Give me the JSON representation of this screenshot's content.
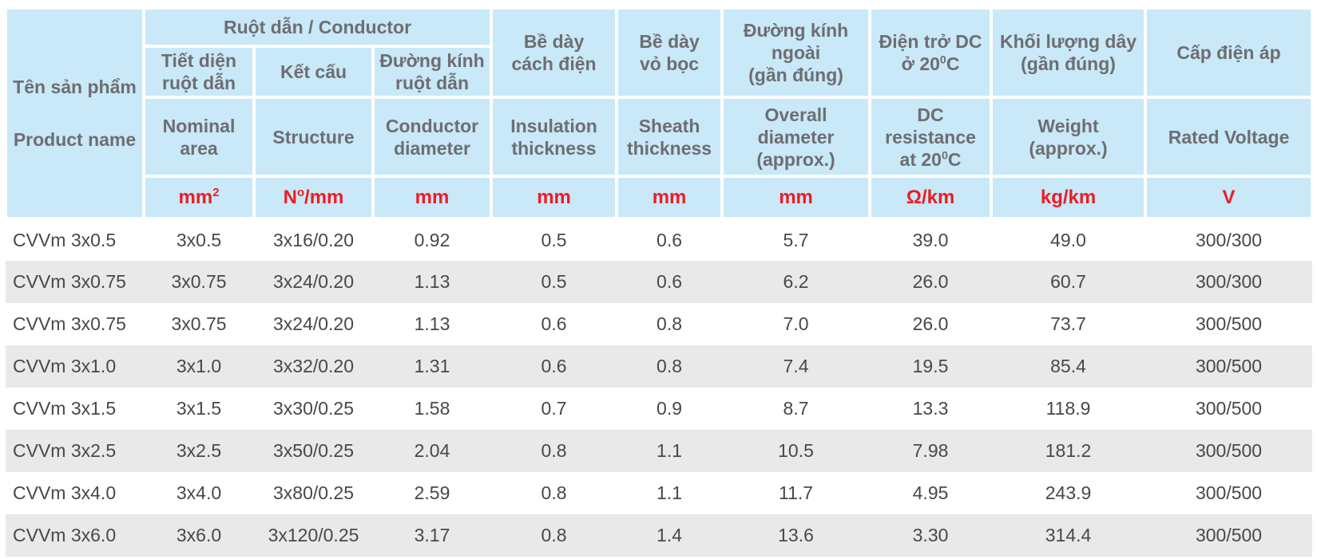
{
  "colors": {
    "header_bg": "#c9e8f8",
    "header_text": "#6d6e71",
    "unit_text": "#ed1c24",
    "data_text": "#48484a",
    "row_alt_bg": "#e9e9e9",
    "grid_line": "#ffffff"
  },
  "table": {
    "header": {
      "product_name_vi": "Tên sản phẩm",
      "product_name_en": "Product name",
      "conductor_group": "Ruột dẫn / Conductor",
      "vi": {
        "nominal_area": "Tiết diện\nruột dẫn",
        "structure": "Kết cấu",
        "conductor_diameter": "Đường kính\nruột dẫn",
        "insulation_thickness": "Bề dày\ncách điện",
        "sheath_thickness": "Bề dày\nvỏ bọc",
        "overall_diameter": "Đường kính\nngoài\n(gần đúng)",
        "dc_resistance": "Điện trở DC\nở 20^{0}C",
        "weight": "Khối lượng dây\n(gần đúng)",
        "rated_voltage": "Cấp điện áp"
      },
      "en": {
        "nominal_area": "Nominal\narea",
        "structure": "Structure",
        "conductor_diameter": "Conductor\ndiameter",
        "insulation_thickness": "Insulation\nthickness",
        "sheath_thickness": "Sheath\nthickness",
        "overall_diameter": "Overall\ndiameter\n(approx.)",
        "dc_resistance": "DC\nresistance\nat 20^{0}C",
        "weight": "Weight\n(approx.)",
        "rated_voltage": "Rated Voltage"
      },
      "units": [
        "mm^{2}",
        "N^{o}/mm",
        "mm",
        "mm",
        "mm",
        "mm",
        "Ω/km",
        "kg/km",
        "V"
      ]
    },
    "rows": [
      [
        "CVVm 3x0.5",
        "3x0.5",
        "3x16/0.20",
        "0.92",
        "0.5",
        "0.6",
        "5.7",
        "39.0",
        "49.0",
        "300/300"
      ],
      [
        "CVVm 3x0.75",
        "3x0.75",
        "3x24/0.20",
        "1.13",
        "0.5",
        "0.6",
        "6.2",
        "26.0",
        "60.7",
        "300/300"
      ],
      [
        "CVVm 3x0.75",
        "3x0.75",
        "3x24/0.20",
        "1.13",
        "0.6",
        "0.8",
        "7.0",
        "26.0",
        "73.7",
        "300/500"
      ],
      [
        "CVVm 3x1.0",
        "3x1.0",
        "3x32/0.20",
        "1.31",
        "0.6",
        "0.8",
        "7.4",
        "19.5",
        "85.4",
        "300/500"
      ],
      [
        "CVVm 3x1.5",
        "3x1.5",
        "3x30/0.25",
        "1.58",
        "0.7",
        "0.9",
        "8.7",
        "13.3",
        "118.9",
        "300/500"
      ],
      [
        "CVVm 3x2.5",
        "3x2.5",
        "3x50/0.25",
        "2.04",
        "0.8",
        "1.1",
        "10.5",
        "7.98",
        "181.2",
        "300/500"
      ],
      [
        "CVVm 3x4.0",
        "3x4.0",
        "3x80/0.25",
        "2.59",
        "0.8",
        "1.1",
        "11.7",
        "4.95",
        "243.9",
        "300/500"
      ],
      [
        "CVVm 3x6.0",
        "3x6.0",
        "3x120/0.25",
        "3.17",
        "0.8",
        "1.4",
        "13.6",
        "3.30",
        "314.4",
        "300/500"
      ]
    ]
  }
}
